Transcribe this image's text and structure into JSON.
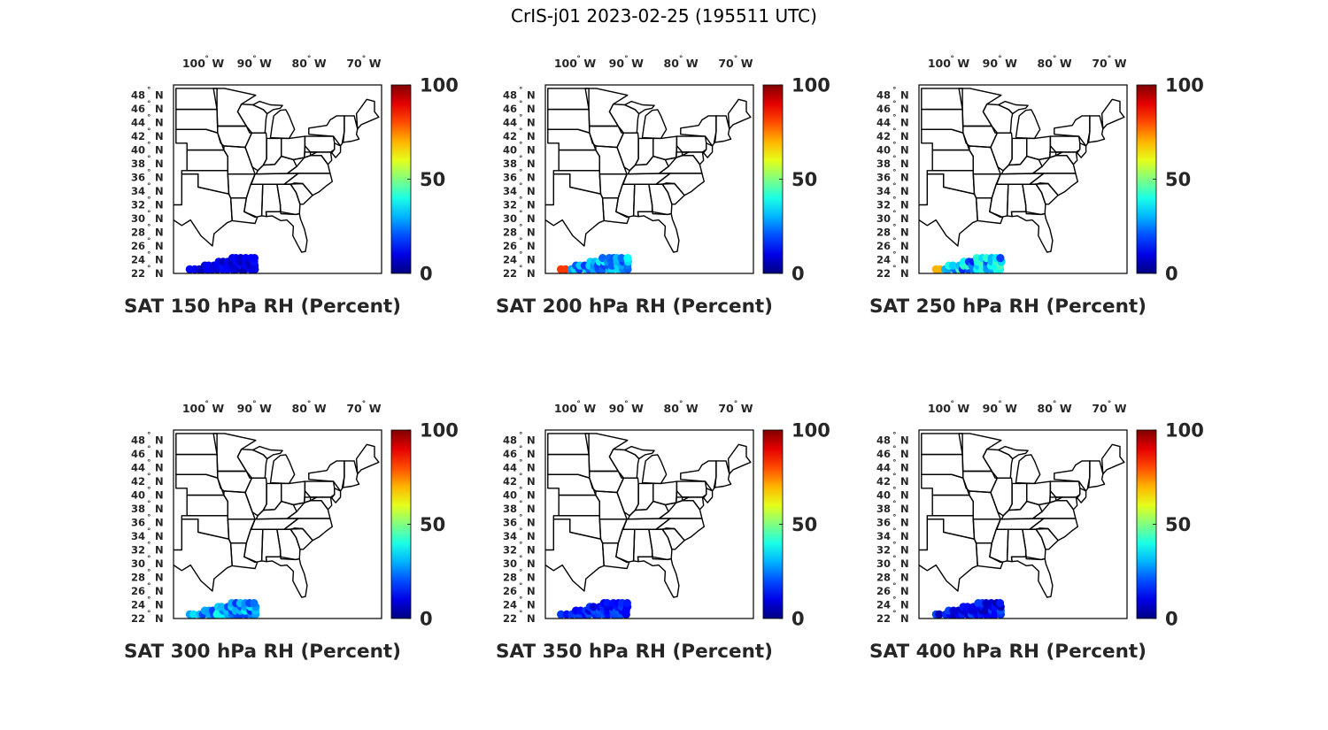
{
  "figure": {
    "title": "CrIS-j01 2023-02-25 (195511 UTC)"
  },
  "colorbar": {
    "colormap": "jet",
    "ticks": [
      "100",
      "50",
      "0"
    ],
    "min": 0,
    "max": 100
  },
  "map": {
    "lon_ticks": [
      {
        "deg": "100",
        "hemi": "W",
        "lon": -100
      },
      {
        "deg": "90",
        "hemi": "W",
        "lon": -90
      },
      {
        "deg": "80",
        "hemi": "W",
        "lon": -80
      },
      {
        "deg": "70",
        "hemi": "W",
        "lon": -70
      }
    ],
    "lat_ticks": [
      {
        "deg": "48",
        "hemi": "N",
        "lat": 48
      },
      {
        "deg": "46",
        "hemi": "N",
        "lat": 46
      },
      {
        "deg": "44",
        "hemi": "N",
        "lat": 44
      },
      {
        "deg": "42",
        "hemi": "N",
        "lat": 42
      },
      {
        "deg": "40",
        "hemi": "N",
        "lat": 40
      },
      {
        "deg": "38",
        "hemi": "N",
        "lat": 38
      },
      {
        "deg": "36",
        "hemi": "N",
        "lat": 36
      },
      {
        "deg": "34",
        "hemi": "N",
        "lat": 34
      },
      {
        "deg": "32",
        "hemi": "N",
        "lat": 32
      },
      {
        "deg": "30",
        "hemi": "N",
        "lat": 30
      },
      {
        "deg": "28",
        "hemi": "N",
        "lat": 28
      },
      {
        "deg": "26",
        "hemi": "N",
        "lat": 26
      },
      {
        "deg": "24",
        "hemi": "N",
        "lat": 24
      },
      {
        "deg": "22",
        "hemi": "N",
        "lat": 22
      }
    ],
    "lon_range": [
      -104.5,
      -66.5
    ],
    "lat_range": [
      22,
      49.5
    ],
    "degree_symbol": "°"
  },
  "panels": [
    {
      "title": "SAT 150 hPa RH (Percent)",
      "rh_range": [
        4,
        14
      ]
    },
    {
      "title": "SAT 200 hPa RH (Percent)",
      "rh_range": [
        18,
        38
      ],
      "hotspot_rh": 82
    },
    {
      "title": "SAT 250 hPa RH (Percent)",
      "rh_range": [
        14,
        45
      ],
      "hotspot_rh": 70
    },
    {
      "title": "SAT 300 hPa RH (Percent)",
      "rh_range": [
        16,
        40
      ]
    },
    {
      "title": "SAT 350 hPa RH (Percent)",
      "rh_range": [
        8,
        22
      ]
    },
    {
      "title": "SAT 400 hPa RH (Percent)",
      "rh_range": [
        4,
        20
      ]
    }
  ]
}
